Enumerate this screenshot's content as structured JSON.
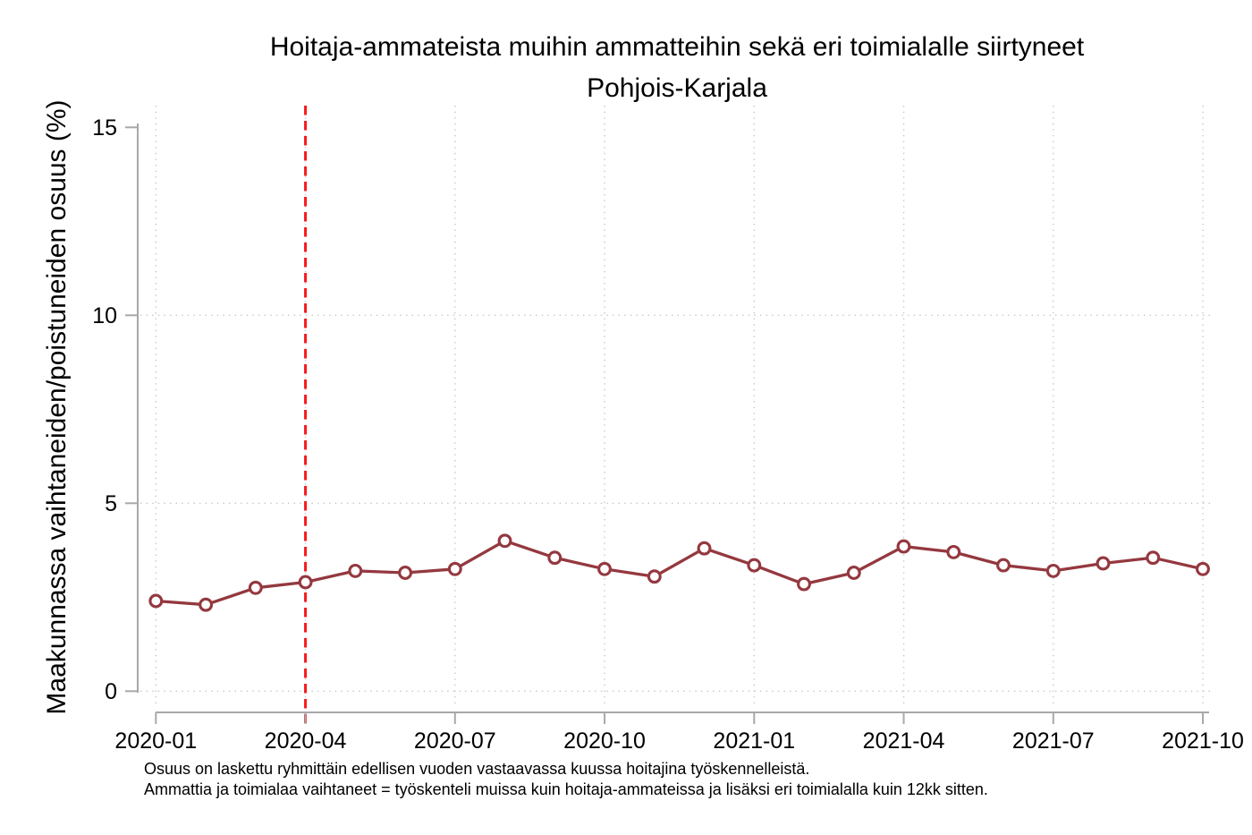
{
  "title": "Hoitaja-ammateista muihin ammatteihin sekä eri toimialalle siirtyneet",
  "subtitle": "Pohjois-Karjala",
  "footnotes": [
    "Osuus on laskettu ryhmittäin edellisen vuoden vastaavassa kuussa hoitajina työskennelleistä.",
    "Ammattia ja toimialaa vaihtaneet = työskenteli muissa kuin hoitaja-ammateissa ja lisäksi eri toimialalla kuin 12kk sitten."
  ],
  "colors": {
    "series": "#94383f",
    "event_line": "#f8191d",
    "axis": "#a8a8a8",
    "grid": "#c6c6c6",
    "text": "#000000",
    "background": "#ffffff"
  },
  "chart_data": {
    "type": "line",
    "title": "Hoitaja-ammateista muihin ammatteihin sekä eri toimialalle siirtyneet",
    "subtitle": "Pohjois-Karjala",
    "xlabel": "",
    "ylabel": "Maakunnassa vaihtaneiden/poistuneiden osuus (%)",
    "ylim": [
      0,
      15
    ],
    "yticks": [
      0,
      5,
      10,
      15
    ],
    "hgrid_values": [
      0,
      5,
      10
    ],
    "xtick_labels": [
      "2020-01",
      "2020-04",
      "2020-07",
      "2020-10",
      "2021-01",
      "2021-04",
      "2021-07",
      "2021-10"
    ],
    "grid": "dotted",
    "legend": "none",
    "marker": "open-circle",
    "x": [
      "2020-01",
      "2020-02",
      "2020-03",
      "2020-04",
      "2020-05",
      "2020-06",
      "2020-07",
      "2020-08",
      "2020-09",
      "2020-10",
      "2020-11",
      "2020-12",
      "2021-01",
      "2021-02",
      "2021-03",
      "2021-04",
      "2021-05",
      "2021-06",
      "2021-07",
      "2021-08",
      "2021-09",
      "2021-10"
    ],
    "series": [
      {
        "name": "Pohjois-Karjala",
        "color": "#94383f",
        "values": [
          2.4,
          2.3,
          2.75,
          2.9,
          3.2,
          3.15,
          3.25,
          4.0,
          3.55,
          3.25,
          3.05,
          3.8,
          3.35,
          2.85,
          3.15,
          3.85,
          3.7,
          3.35,
          3.2,
          3.4,
          3.55,
          3.25
        ]
      }
    ],
    "event_line": {
      "x": "2020-04",
      "style": "dashed",
      "color": "#f8191d"
    }
  }
}
